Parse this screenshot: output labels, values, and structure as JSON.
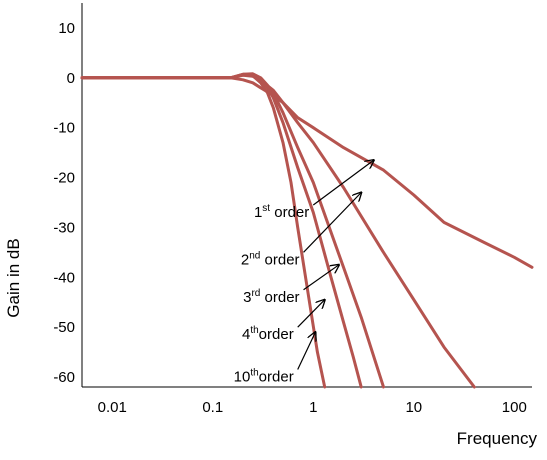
{
  "chart_data": {
    "type": "line",
    "title": "",
    "xlabel": "Frequency",
    "ylabel": "Gain in dB",
    "x_scale": "log",
    "xlim": [
      0.005,
      150
    ],
    "ylim": [
      -62,
      15
    ],
    "grid": false,
    "line_color": "#b5544f",
    "arrow_color": "#000000",
    "x_ticks": [
      {
        "value": 0.01,
        "label": "0.01"
      },
      {
        "value": 0.1,
        "label": "0.1"
      },
      {
        "value": 1,
        "label": "1"
      },
      {
        "value": 10,
        "label": "10"
      },
      {
        "value": 100,
        "label": "100"
      }
    ],
    "y_ticks": [
      {
        "value": 10,
        "label": "10"
      },
      {
        "value": 0,
        "label": "0"
      },
      {
        "value": -10,
        "label": "-10"
      },
      {
        "value": -20,
        "label": "-20"
      },
      {
        "value": -30,
        "label": "-30"
      },
      {
        "value": -40,
        "label": "-40"
      },
      {
        "value": -50,
        "label": "-50"
      },
      {
        "value": -60,
        "label": "-60"
      }
    ],
    "series": [
      {
        "order": 1,
        "x": [
          0.005,
          0.05,
          0.15,
          0.2,
          0.25,
          0.3,
          0.4,
          0.5,
          0.7,
          1,
          2,
          5,
          10,
          20,
          50,
          100,
          150
        ],
        "y": [
          0,
          0,
          0,
          -0.4,
          -1,
          -2,
          -3.5,
          -5,
          -8,
          -10,
          -14,
          -18.5,
          -23.5,
          -29,
          -33,
          -36,
          -38
        ]
      },
      {
        "order": 2,
        "x": [
          0.005,
          0.05,
          0.15,
          0.2,
          0.25,
          0.3,
          0.4,
          0.5,
          0.7,
          1,
          2,
          5,
          10,
          20,
          40
        ],
        "y": [
          0,
          0,
          0,
          0.5,
          0.3,
          -0.5,
          -2.5,
          -5,
          -9,
          -13,
          -22,
          -35,
          -44.5,
          -54,
          -62
        ]
      },
      {
        "order": 3,
        "x": [
          0.005,
          0.05,
          0.15,
          0.2,
          0.25,
          0.3,
          0.35,
          0.4,
          0.5,
          0.7,
          1,
          2,
          3,
          5
        ],
        "y": [
          0,
          0,
          0,
          0.7,
          0.8,
          0,
          -1.5,
          -3,
          -7,
          -14,
          -21,
          -38,
          -48,
          -62
        ]
      },
      {
        "order": 10,
        "x": [
          0.005,
          0.05,
          0.15,
          0.2,
          0.25,
          0.3,
          0.35,
          0.4,
          0.5,
          0.6,
          0.7,
          0.9,
          1.1,
          1.3
        ],
        "y": [
          0,
          0,
          0,
          0.6,
          0.4,
          -1,
          -3,
          -6,
          -13,
          -21,
          -30,
          -44,
          -55,
          -62
        ]
      },
      {
        "order": 4,
        "x": [
          0.005,
          0.05,
          0.15,
          0.2,
          0.25,
          0.3,
          0.35,
          0.4,
          0.5,
          0.7,
          1,
          1.5,
          2,
          2.5,
          3
        ],
        "y": [
          0,
          0,
          0,
          0.7,
          0.6,
          -0.5,
          -2,
          -4,
          -9,
          -18,
          -27,
          -40,
          -49,
          -56,
          -62
        ]
      }
    ],
    "annotations": [
      {
        "base": "1",
        "sup": "st",
        "rest": " order",
        "arrow_from": [
          1,
          -25.5
        ],
        "arrow_to": [
          4,
          -16.5
        ]
      },
      {
        "base": "2",
        "sup": "nd",
        "rest": " order",
        "arrow_from": [
          0.8,
          -35
        ],
        "arrow_to": [
          3,
          -23
        ]
      },
      {
        "base": "3",
        "sup": "rd",
        "rest": " order",
        "arrow_from": [
          0.8,
          -42.5
        ],
        "arrow_to": [
          1.8,
          -37.5
        ]
      },
      {
        "base": "4",
        "sup": "th",
        "rest": "order",
        "arrow_from": [
          0.7,
          -50
        ],
        "arrow_to": [
          1.3,
          -44.5
        ]
      },
      {
        "base": "10",
        "sup": "th",
        "rest": "order",
        "arrow_from": [
          0.7,
          -58.5
        ],
        "arrow_to": [
          1.05,
          -51
        ]
      }
    ]
  }
}
